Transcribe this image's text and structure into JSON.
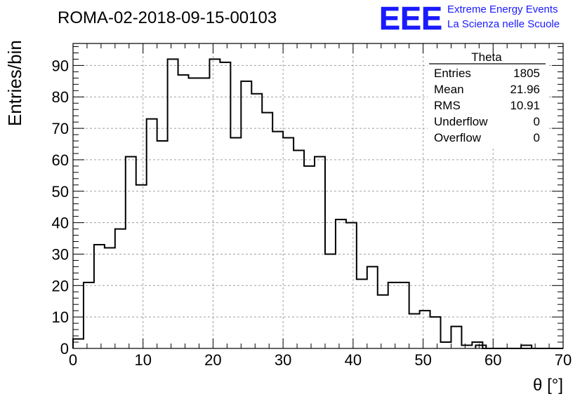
{
  "header": {
    "run_title": "ROMA-02-2018-09-15-00103",
    "logo_text": "EEE",
    "logo_line1": "Extreme Energy Events",
    "logo_line2": "La Scienza nelle Scuole",
    "logo_color": "#1a1aff"
  },
  "stats_box": {
    "title": "Theta",
    "rows": [
      {
        "label": "Entries",
        "value": "1805"
      },
      {
        "label": "Mean",
        "value": "21.96"
      },
      {
        "label": "RMS",
        "value": "10.91"
      },
      {
        "label": "Underflow",
        "value": "0"
      },
      {
        "label": "Overflow",
        "value": "0"
      }
    ]
  },
  "chart_data": {
    "type": "histogram",
    "title": "ROMA-02-2018-09-15-00103",
    "xlabel": "θ [°]",
    "ylabel": "Entries/bin",
    "xlim": [
      0,
      70
    ],
    "ylim": [
      0,
      97
    ],
    "x_ticks": [
      0,
      10,
      20,
      30,
      40,
      50,
      60,
      70
    ],
    "y_ticks": [
      0,
      10,
      20,
      30,
      40,
      50,
      60,
      70,
      80,
      90
    ],
    "bin_width": 1.5,
    "bin_start": 0,
    "values": [
      3,
      21,
      33,
      32,
      38,
      61,
      52,
      73,
      66,
      92,
      87,
      86,
      86,
      92,
      91,
      67,
      85,
      81,
      75,
      69,
      67,
      63,
      58,
      61,
      30,
      41,
      40,
      22,
      26,
      17,
      21,
      21,
      11,
      12,
      10,
      2,
      7,
      1,
      2,
      0,
      0,
      0,
      0,
      0,
      0,
      0,
      0,
      0,
      0,
      0,
      0,
      0,
      0,
      0,
      0,
      0,
      0,
      0,
      0,
      0,
      0,
      0,
      0,
      0,
      0,
      0,
      0,
      0,
      0,
      0,
      0,
      0,
      0,
      0,
      0,
      0,
      0,
      0,
      0,
      0
    ],
    "extra_bins": [
      {
        "x": 57.5,
        "value": 1
      },
      {
        "x": 64.0,
        "value": 1
      }
    ],
    "grid": true,
    "line_color": "#000000",
    "grid_color": "#a0a0a0"
  }
}
